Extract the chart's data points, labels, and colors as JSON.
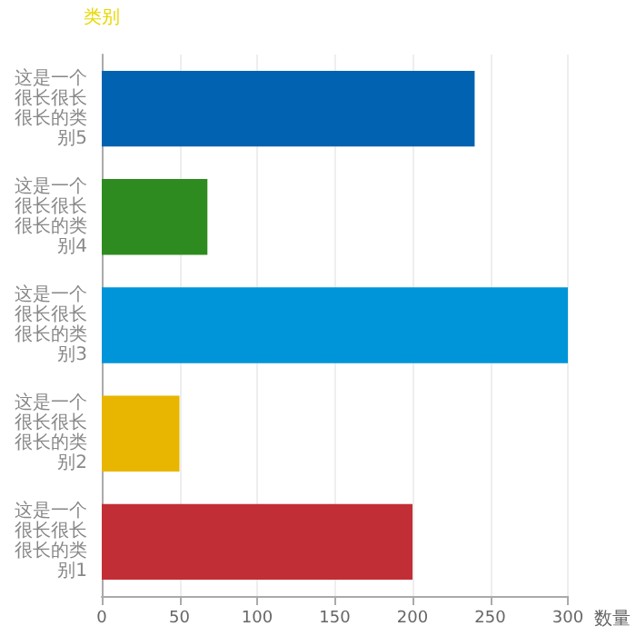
{
  "chart_data": {
    "type": "bar",
    "orientation": "horizontal",
    "ylabel": "类别",
    "xlabel": "数量",
    "categories": [
      "这是一个很长很长很长的类别5",
      "这是一个很长很长很长的类别4",
      "这是一个很长很长很长的类别3",
      "这是一个很长很长很长的类别2",
      "这是一个很长很长很长的类别1"
    ],
    "values": [
      240,
      68,
      300,
      50,
      200
    ],
    "colors": [
      "#0062b1",
      "#2e8b1f",
      "#0095d9",
      "#e8b500",
      "#c22e35"
    ],
    "xlim": [
      0,
      300
    ],
    "xticks": [
      0,
      50,
      100,
      150,
      200,
      250,
      300
    ],
    "grid": "x"
  }
}
